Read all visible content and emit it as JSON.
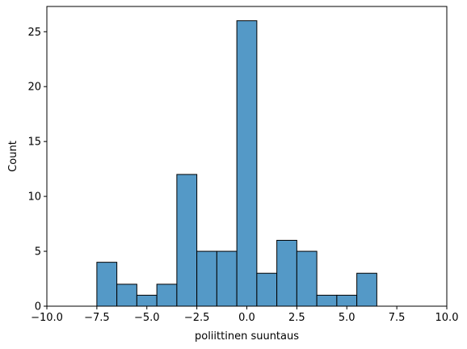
{
  "chart_data": {
    "type": "bar",
    "subtype": "histogram",
    "title": "",
    "xlabel": "poliittinen suuntaus",
    "ylabel": "Count",
    "xlim": [
      -10.0,
      10.0
    ],
    "ylim": [
      0,
      27.3
    ],
    "grid": false,
    "bar_color": "#5499c7",
    "edge_color": "#000000",
    "bins": [
      {
        "x0": -7.5,
        "x1": -6.5,
        "count": 4
      },
      {
        "x0": -6.5,
        "x1": -5.5,
        "count": 2
      },
      {
        "x0": -5.5,
        "x1": -4.5,
        "count": 1
      },
      {
        "x0": -4.5,
        "x1": -3.5,
        "count": 2
      },
      {
        "x0": -3.5,
        "x1": -2.5,
        "count": 12
      },
      {
        "x0": -2.5,
        "x1": -1.5,
        "count": 5
      },
      {
        "x0": -1.5,
        "x1": -0.5,
        "count": 5
      },
      {
        "x0": -0.5,
        "x1": 0.5,
        "count": 26
      },
      {
        "x0": 0.5,
        "x1": 1.5,
        "count": 3
      },
      {
        "x0": 1.5,
        "x1": 2.5,
        "count": 6
      },
      {
        "x0": 2.5,
        "x1": 3.5,
        "count": 5
      },
      {
        "x0": 3.5,
        "x1": 4.5,
        "count": 1
      },
      {
        "x0": 4.5,
        "x1": 5.5,
        "count": 1
      },
      {
        "x0": 5.5,
        "x1": 6.5,
        "count": 3
      }
    ],
    "x_ticks": [
      -10.0,
      -7.5,
      -5.0,
      -2.5,
      0.0,
      2.5,
      5.0,
      7.5,
      10.0
    ],
    "x_tick_labels": [
      "−10.0",
      "−7.5",
      "−5.0",
      "−2.5",
      "0.0",
      "2.5",
      "5.0",
      "7.5",
      "10.0"
    ],
    "y_ticks": [
      0,
      5,
      10,
      15,
      20,
      25
    ],
    "y_tick_labels": [
      "0",
      "5",
      "10",
      "15",
      "20",
      "25"
    ]
  }
}
